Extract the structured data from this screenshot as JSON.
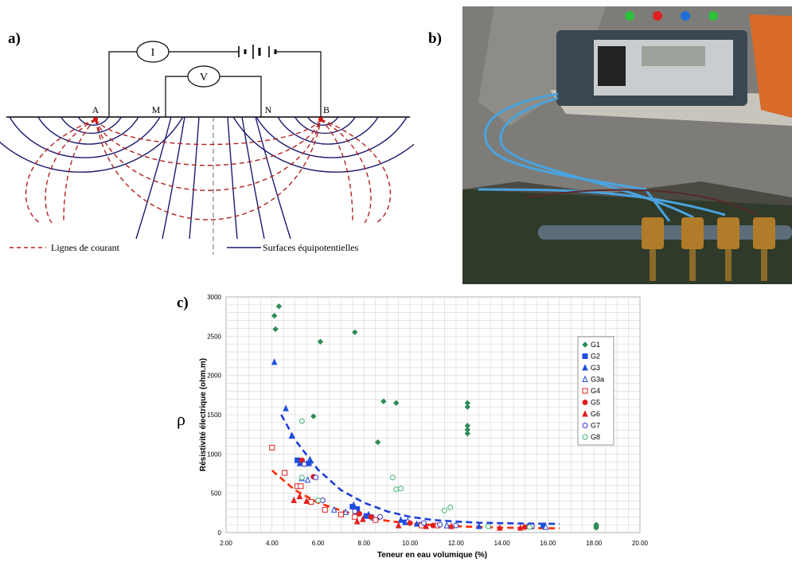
{
  "panel_labels": {
    "a": "a)",
    "b": "b)",
    "c": "c)"
  },
  "schematic": {
    "instruments": {
      "current": "I",
      "voltage": "V"
    },
    "electrodes": {
      "A": "A",
      "M": "M",
      "N": "N",
      "B": "B"
    },
    "legend": {
      "current_lines": "Lignes de courant",
      "equipotential": "Surfaces équipotentielles"
    },
    "colors": {
      "current": "#b22222",
      "equipotential": "#1a1a6e"
    }
  },
  "photo": {
    "colors": {
      "rock": "#7d7c78",
      "meter": "#3a4750",
      "cable": "#4aa3df",
      "rod": "#5c6c78",
      "electrode": "#b07c2a"
    }
  },
  "rho_symbol": "ρ",
  "chart_data": {
    "type": "scatter",
    "title": "",
    "xlabel": "Teneur en eau volumique (%)",
    "ylabel": "Résistivité électrique (ohm.m)",
    "xlim": [
      2,
      20
    ],
    "ylim": [
      0,
      3000
    ],
    "xticks": [
      "2.00",
      "4.00",
      "6.00",
      "8.00",
      "10.00",
      "12.00",
      "14.00",
      "16.00",
      "18.00",
      "20.00"
    ],
    "yticks": [
      "0",
      "500",
      "1000",
      "1500",
      "2000",
      "2500",
      "3000"
    ],
    "grid": true,
    "legend_position": "right",
    "series": [
      {
        "name": "G1",
        "marker": "diamond",
        "filled": true,
        "color": "#2e8b57",
        "points": [
          [
            4.1,
            2760
          ],
          [
            4.15,
            2590
          ],
          [
            4.3,
            2880
          ],
          [
            5.8,
            1480
          ],
          [
            6.1,
            2430
          ],
          [
            7.6,
            2550
          ],
          [
            8.6,
            1150
          ],
          [
            8.85,
            1670
          ],
          [
            9.4,
            1650
          ],
          [
            12.5,
            1650
          ],
          [
            12.5,
            1600
          ],
          [
            12.5,
            1360
          ],
          [
            12.5,
            1310
          ],
          [
            12.5,
            1260
          ],
          [
            18.1,
            100
          ],
          [
            18.1,
            80
          ],
          [
            18.1,
            60
          ]
        ]
      },
      {
        "name": "G2",
        "marker": "square",
        "filled": true,
        "color": "#1f4fe0",
        "points": [
          [
            5.1,
            920
          ],
          [
            5.3,
            900
          ],
          [
            5.6,
            880
          ],
          [
            7.5,
            330
          ],
          [
            7.7,
            300
          ],
          [
            8.1,
            210
          ],
          [
            9.8,
            130
          ],
          [
            10.5,
            100
          ],
          [
            15.2,
            80
          ],
          [
            15.8,
            90
          ]
        ]
      },
      {
        "name": "G3",
        "marker": "triangle",
        "filled": true,
        "color": "#1f4fe0",
        "points": [
          [
            4.1,
            2170
          ],
          [
            4.6,
            1580
          ],
          [
            4.85,
            1230
          ],
          [
            5.2,
            880
          ],
          [
            5.65,
            930
          ],
          [
            7.55,
            350
          ],
          [
            8.2,
            230
          ],
          [
            9.6,
            160
          ],
          [
            10.3,
            110
          ],
          [
            13.0,
            80
          ]
        ]
      },
      {
        "name": "G3a",
        "marker": "triangle",
        "filled": false,
        "color": "#1f4fe0",
        "points": [
          [
            5.3,
            690
          ],
          [
            5.55,
            670
          ],
          [
            6.7,
            290
          ],
          [
            7.2,
            260
          ],
          [
            8.4,
            190
          ],
          [
            9.9,
            150
          ],
          [
            11.6,
            90
          ],
          [
            15.9,
            70
          ]
        ]
      },
      {
        "name": "G4",
        "marker": "square",
        "filled": false,
        "color": "#e02020",
        "points": [
          [
            4.0,
            1080
          ],
          [
            4.55,
            760
          ],
          [
            5.1,
            590
          ],
          [
            5.25,
            590
          ],
          [
            5.7,
            390
          ],
          [
            6.3,
            290
          ],
          [
            7.0,
            230
          ],
          [
            7.6,
            200
          ],
          [
            8.5,
            160
          ],
          [
            10.5,
            90
          ],
          [
            11.2,
            90
          ]
        ]
      },
      {
        "name": "G5",
        "marker": "circle",
        "filled": true,
        "color": "#e02020",
        "points": [
          [
            5.3,
            920
          ],
          [
            5.8,
            710
          ],
          [
            6.2,
            410
          ],
          [
            7.8,
            240
          ],
          [
            8.3,
            200
          ],
          [
            10.0,
            120
          ],
          [
            11.0,
            90
          ],
          [
            15.0,
            70
          ],
          [
            15.3,
            80
          ]
        ]
      },
      {
        "name": "G6",
        "marker": "triangle",
        "filled": true,
        "color": "#e02020",
        "points": [
          [
            4.95,
            410
          ],
          [
            5.2,
            460
          ],
          [
            5.5,
            400
          ],
          [
            7.7,
            140
          ],
          [
            7.95,
            170
          ],
          [
            9.5,
            90
          ],
          [
            10.7,
            80
          ],
          [
            11.8,
            80
          ],
          [
            13.9,
            60
          ],
          [
            14.8,
            60
          ]
        ]
      },
      {
        "name": "G7",
        "marker": "circle",
        "filled": false,
        "color": "#3333cc",
        "points": [
          [
            5.4,
            870
          ],
          [
            5.9,
            700
          ],
          [
            6.2,
            410
          ],
          [
            7.6,
            270
          ],
          [
            8.7,
            200
          ],
          [
            10.6,
            120
          ],
          [
            11.3,
            100
          ],
          [
            12.0,
            90
          ],
          [
            15.3,
            80
          ]
        ]
      },
      {
        "name": "G8",
        "marker": "circle",
        "filled": false,
        "color": "#3cb371",
        "points": [
          [
            5.3,
            1420
          ],
          [
            5.3,
            700
          ],
          [
            6.0,
            410
          ],
          [
            9.25,
            700
          ],
          [
            9.4,
            550
          ],
          [
            9.6,
            560
          ],
          [
            11.5,
            280
          ],
          [
            11.75,
            320
          ],
          [
            13.4,
            80
          ],
          [
            15.2,
            70
          ]
        ]
      }
    ],
    "trend_lines": [
      {
        "color": "#1f3fd6",
        "points": [
          [
            4.4,
            1500
          ],
          [
            5,
            1180
          ],
          [
            6,
            800
          ],
          [
            7,
            540
          ],
          [
            8,
            380
          ],
          [
            9,
            270
          ],
          [
            10,
            200
          ],
          [
            11,
            160
          ],
          [
            12,
            140
          ],
          [
            13,
            125
          ],
          [
            14,
            120
          ],
          [
            15,
            115
          ],
          [
            16,
            112
          ],
          [
            16.5,
            110
          ]
        ]
      },
      {
        "color": "#ff2a00",
        "points": [
          [
            4.0,
            790
          ],
          [
            5,
            540
          ],
          [
            6,
            380
          ],
          [
            7,
            280
          ],
          [
            8,
            200
          ],
          [
            9,
            150
          ],
          [
            10,
            115
          ],
          [
            11,
            95
          ],
          [
            12,
            80
          ],
          [
            13,
            70
          ],
          [
            14,
            62
          ],
          [
            15,
            58
          ],
          [
            16,
            55
          ],
          [
            16.5,
            54
          ]
        ]
      }
    ]
  }
}
